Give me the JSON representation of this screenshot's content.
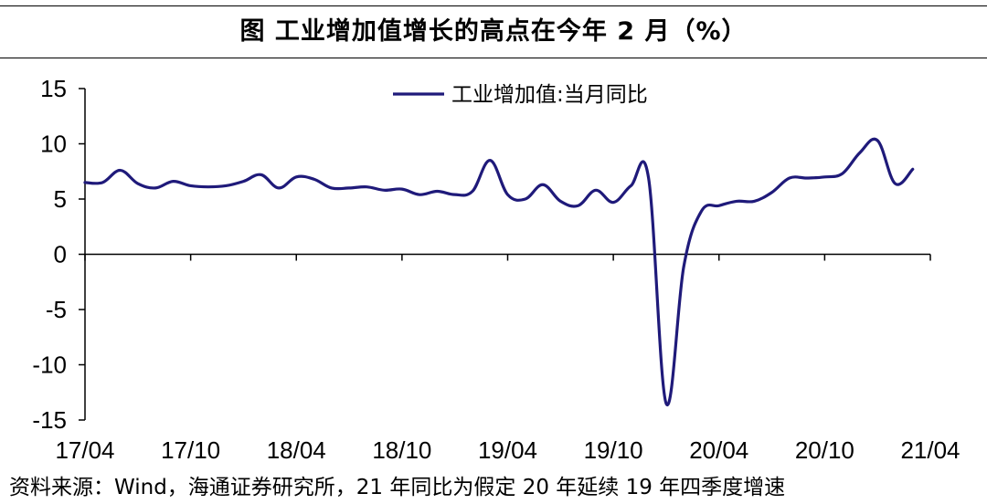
{
  "title": "图  工业增加值增长的高点在今年 2 月（%）",
  "source": "资料来源：Wind，海通证券研究所，21 年同比为假定 20 年延续 19 年四季度增速",
  "chart_data": {
    "type": "line",
    "title": "",
    "xlabel": "",
    "ylabel": "",
    "ylim": [
      -15,
      15
    ],
    "yticks": [
      "15",
      "10",
      "5",
      "0",
      "-5",
      "-10",
      "-15"
    ],
    "xticks": [
      {
        "label": "17/04",
        "index": 0
      },
      {
        "label": "17/10",
        "index": 6
      },
      {
        "label": "18/04",
        "index": 12
      },
      {
        "label": "18/10",
        "index": 18
      },
      {
        "label": "19/04",
        "index": 24
      },
      {
        "label": "19/10",
        "index": 30
      },
      {
        "label": "20/04",
        "index": 36
      },
      {
        "label": "20/10",
        "index": 42
      },
      {
        "label": "21/04",
        "index": 48
      }
    ],
    "legend_position": "top-center",
    "series": [
      {
        "name": "工业增加值:当月同比",
        "color": "#1F1A7A",
        "values": [
          6.5,
          6.5,
          7.6,
          6.4,
          6.0,
          6.6,
          6.2,
          6.1,
          6.2,
          6.6,
          7.2,
          6.0,
          7.0,
          6.8,
          6.0,
          6.0,
          6.1,
          5.8,
          5.9,
          5.4,
          5.7,
          5.4,
          5.7,
          8.5,
          5.4,
          5.0,
          6.3,
          4.8,
          4.4,
          5.8,
          4.7,
          6.2,
          6.9,
          -13.5,
          -1.1,
          3.9,
          4.4,
          4.8,
          4.8,
          5.6,
          6.9,
          6.9,
          7.0,
          7.3,
          9.2,
          10.3,
          6.4,
          7.7
        ]
      }
    ]
  }
}
